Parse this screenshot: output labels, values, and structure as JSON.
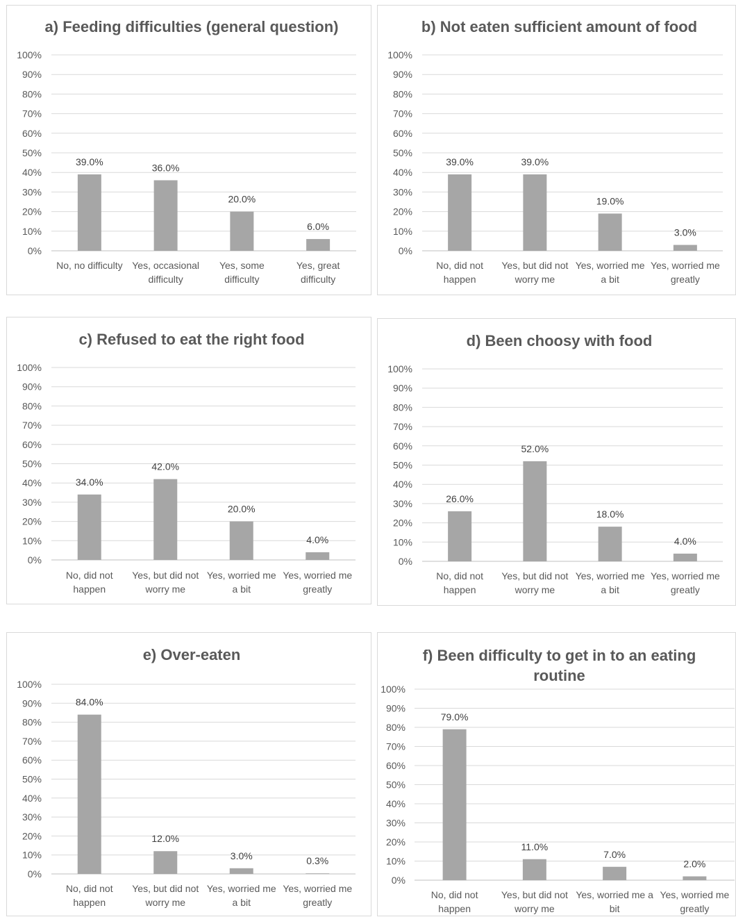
{
  "chart_data": [
    {
      "type": "bar",
      "title": "a) Feeding difficulties (general question)",
      "categories": [
        [
          "No, no difficulty"
        ],
        [
          "Yes, occasional",
          "difficulty"
        ],
        [
          "Yes, some",
          "difficulty"
        ],
        [
          "Yes, great",
          "difficulty"
        ]
      ],
      "values": [
        39.0,
        36.0,
        20.0,
        6.0
      ],
      "data_labels": [
        "39.0%",
        "36.0%",
        "20.0%",
        "6.0%"
      ],
      "ylim": [
        0,
        100
      ],
      "yticks": [
        "0%",
        "10%",
        "20%",
        "30%",
        "40%",
        "50%",
        "60%",
        "70%",
        "80%",
        "90%",
        "100%"
      ],
      "grid": true,
      "bar_color": "#a6a6a6"
    },
    {
      "type": "bar",
      "title": "b) Not eaten sufficient amount of food",
      "categories": [
        [
          "No, did not",
          "happen"
        ],
        [
          "Yes, but did not",
          "worry me"
        ],
        [
          "Yes, worried me",
          "a bit"
        ],
        [
          "Yes, worried me",
          "greatly"
        ]
      ],
      "values": [
        39.0,
        39.0,
        19.0,
        3.0
      ],
      "data_labels": [
        "39.0%",
        "39.0%",
        "19.0%",
        "3.0%"
      ],
      "ylim": [
        0,
        100
      ],
      "yticks": [
        "0%",
        "10%",
        "20%",
        "30%",
        "40%",
        "50%",
        "60%",
        "70%",
        "80%",
        "90%",
        "100%"
      ],
      "grid": true,
      "bar_color": "#a6a6a6"
    },
    {
      "type": "bar",
      "title": "c) Refused to eat the right food",
      "categories": [
        [
          "No, did not",
          "happen"
        ],
        [
          "Yes, but did not",
          "worry me"
        ],
        [
          "Yes, worried me",
          "a bit"
        ],
        [
          "Yes, worried me",
          "greatly"
        ]
      ],
      "values": [
        34.0,
        42.0,
        20.0,
        4.0
      ],
      "data_labels": [
        "34.0%",
        "42.0%",
        "20.0%",
        "4.0%"
      ],
      "ylim": [
        0,
        100
      ],
      "yticks": [
        "0%",
        "10%",
        "20%",
        "30%",
        "40%",
        "50%",
        "60%",
        "70%",
        "80%",
        "90%",
        "100%"
      ],
      "grid": true,
      "bar_color": "#a6a6a6"
    },
    {
      "type": "bar",
      "title": "d) Been choosy with food",
      "categories": [
        [
          "No, did not",
          "happen"
        ],
        [
          "Yes, but did not",
          "worry me"
        ],
        [
          "Yes, worried me",
          "a bit"
        ],
        [
          "Yes, worried me",
          "greatly"
        ]
      ],
      "values": [
        26.0,
        52.0,
        18.0,
        4.0
      ],
      "data_labels": [
        "26.0%",
        "52.0%",
        "18.0%",
        "4.0%"
      ],
      "ylim": [
        0,
        100
      ],
      "yticks": [
        "0%",
        "10%",
        "20%",
        "30%",
        "40%",
        "50%",
        "60%",
        "70%",
        "80%",
        "90%",
        "100%"
      ],
      "grid": true,
      "bar_color": "#a6a6a6"
    },
    {
      "type": "bar",
      "title": "e) Over-eaten",
      "categories": [
        [
          "No, did not",
          "happen"
        ],
        [
          "Yes, but did not",
          "worry me"
        ],
        [
          "Yes, worried me",
          "a bit"
        ],
        [
          "Yes, worried me",
          "greatly"
        ]
      ],
      "values": [
        84.0,
        12.0,
        3.0,
        0.3
      ],
      "data_labels": [
        "84.0%",
        "12.0%",
        "3.0%",
        "0.3%"
      ],
      "ylim": [
        0,
        100
      ],
      "yticks": [
        "0%",
        "10%",
        "20%",
        "30%",
        "40%",
        "50%",
        "60%",
        "70%",
        "80%",
        "90%",
        "100%"
      ],
      "grid": true,
      "bar_color": "#a6a6a6"
    },
    {
      "type": "bar",
      "title": "f) Been difficulty to get in to an eating routine",
      "title_lines": [
        "f) Been difficulty to get in to an eating",
        "routine"
      ],
      "categories": [
        [
          "No, did not",
          "happen"
        ],
        [
          "Yes, but did not",
          "worry me"
        ],
        [
          "Yes, worried me a",
          "bit"
        ],
        [
          "Yes, worried me",
          "greatly"
        ]
      ],
      "values": [
        79.0,
        11.0,
        7.0,
        2.0
      ],
      "data_labels": [
        "79.0%",
        "11.0%",
        "7.0%",
        "2.0%"
      ],
      "ylim": [
        0,
        100
      ],
      "yticks": [
        "0%",
        "10%",
        "20%",
        "30%",
        "40%",
        "50%",
        "60%",
        "70%",
        "80%",
        "90%",
        "100%"
      ],
      "grid": true,
      "bar_color": "#a6a6a6"
    }
  ]
}
